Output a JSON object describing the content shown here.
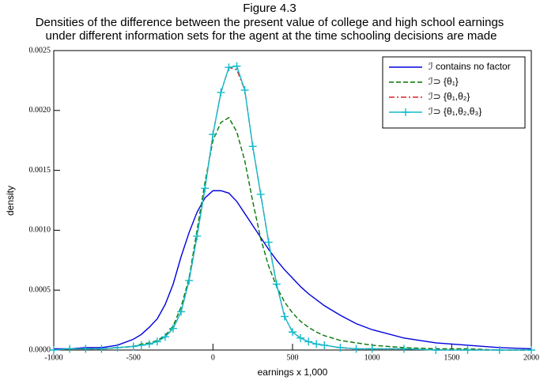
{
  "chart_data": {
    "type": "line",
    "title": "Figure 4.3",
    "subtitle": [
      "Densities of the difference between the present value of college and high school earnings",
      "under different information sets for the agent at the time schooling decisions are made"
    ],
    "x_label": "earnings x 1,000",
    "y_label": "density",
    "x": [
      -1000,
      -900,
      -800,
      -700,
      -600,
      -500,
      -450,
      -400,
      -350,
      -300,
      -250,
      -200,
      -150,
      -100,
      -50,
      0,
      50,
      100,
      150,
      200,
      250,
      300,
      350,
      400,
      450,
      500,
      550,
      600,
      650,
      700,
      800,
      900,
      1000,
      1200,
      1400,
      1600,
      1800,
      2000
    ],
    "series": [
      {
        "name": "ℐ contains no factor",
        "color": "#0000dd",
        "dash": "solid",
        "values": [
          1e-05,
          1e-05,
          2e-05,
          2e-05,
          4e-05,
          9e-05,
          0.00013,
          0.00019,
          0.00026,
          0.00038,
          0.00055,
          0.00078,
          0.00098,
          0.00115,
          0.00127,
          0.00133,
          0.00133,
          0.00131,
          0.00124,
          0.00114,
          0.00104,
          0.00094,
          0.00084,
          0.00075,
          0.00067,
          0.0006,
          0.00053,
          0.00047,
          0.00042,
          0.00037,
          0.00029,
          0.00022,
          0.00017,
          0.0001,
          6e-05,
          4e-05,
          2e-05,
          1e-05
        ]
      },
      {
        "name": "ℐ⊃ {θ₁}",
        "color": "#007700",
        "dash": "dashed",
        "values": [
          0,
          1e-05,
          1e-05,
          1e-05,
          2e-05,
          3e-05,
          5e-05,
          6e-05,
          8e-05,
          0.00012,
          0.0002,
          0.00036,
          0.0006,
          0.001,
          0.0014,
          0.00175,
          0.0019,
          0.00194,
          0.00182,
          0.00158,
          0.00124,
          0.00093,
          0.0007,
          0.00053,
          0.0004,
          0.00031,
          0.00024,
          0.00019,
          0.00015,
          0.00012,
          8e-05,
          6e-05,
          4e-05,
          2e-05,
          1e-05,
          1e-05,
          0,
          0
        ]
      },
      {
        "name": "ℐ⊃ {θ₁,θ₂}",
        "color": "#dd2222",
        "dash": "dashdot",
        "values": [
          0,
          1e-05,
          1e-05,
          1e-05,
          2e-05,
          3e-05,
          4e-05,
          5e-05,
          7e-05,
          0.00011,
          0.00018,
          0.00032,
          0.00058,
          0.00095,
          0.00135,
          0.0018,
          0.00215,
          0.00236,
          0.00234,
          0.00217,
          0.0017,
          0.0013,
          0.0009,
          0.00055,
          0.00028,
          0.00015,
          0.0001,
          7e-05,
          5e-05,
          4e-05,
          2e-05,
          1e-05,
          1e-05,
          1e-05,
          0,
          0,
          0,
          0
        ]
      },
      {
        "name": "ℐ⊃ {θ₁,θ₂,θ₃}",
        "color": "#11bbcc",
        "dash": "solid",
        "marker": "plus",
        "values": [
          0,
          1e-05,
          1e-05,
          1e-05,
          2e-05,
          3e-05,
          4e-05,
          5e-05,
          7e-05,
          0.00011,
          0.00018,
          0.00032,
          0.00058,
          0.00095,
          0.00135,
          0.0018,
          0.00215,
          0.00236,
          0.00237,
          0.00217,
          0.0017,
          0.0013,
          0.0009,
          0.00055,
          0.00028,
          0.00015,
          0.0001,
          7e-05,
          5e-05,
          4e-05,
          2e-05,
          1e-05,
          1e-05,
          1e-05,
          0,
          0,
          0,
          0
        ]
      }
    ],
    "xlim": [
      -1000,
      2000
    ],
    "xticks": [
      -1000,
      -500,
      0,
      500,
      1000,
      1500,
      2000
    ],
    "ylim": [
      0,
      0.0025
    ],
    "yticks": [
      {
        "value": 0,
        "label": "0.0000"
      },
      0.0005,
      {
        "value": 0.001,
        "label": "0.0010"
      },
      0.0015,
      {
        "value": 0.002,
        "label": "0.0020"
      },
      0.0025
    ],
    "legend": "top-right"
  }
}
